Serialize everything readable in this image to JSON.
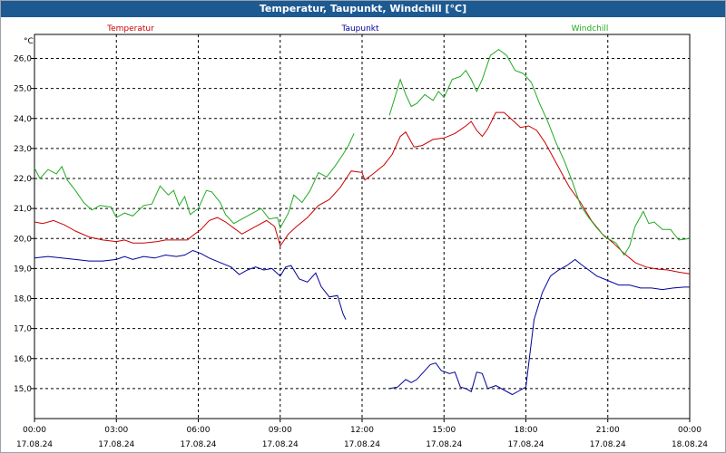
{
  "window": {
    "title": "Temperatur, Taupunkt, Windchill [°C]"
  },
  "chart_data": {
    "type": "line",
    "title": "Temperatur, Taupunkt, Windchill [°C]",
    "ylabel": "°C",
    "xlabel": "",
    "ylim": [
      14.0,
      26.8
    ],
    "xlim": [
      0,
      24
    ],
    "grid": true,
    "legend_placement": "top",
    "yticks": [
      {
        "v": 15.0,
        "label": "15,0"
      },
      {
        "v": 16.0,
        "label": "16,0"
      },
      {
        "v": 17.0,
        "label": "17,0"
      },
      {
        "v": 18.0,
        "label": "18,0"
      },
      {
        "v": 19.0,
        "label": "19,0"
      },
      {
        "v": 20.0,
        "label": "20,0"
      },
      {
        "v": 21.0,
        "label": "21,0"
      },
      {
        "v": 22.0,
        "label": "22,0"
      },
      {
        "v": 23.0,
        "label": "23,0"
      },
      {
        "v": 24.0,
        "label": "24,0"
      },
      {
        "v": 25.0,
        "label": "25,0"
      },
      {
        "v": 26.0,
        "label": "26,0"
      }
    ],
    "xticks": [
      {
        "h": 0,
        "time": "00:00",
        "date": "17.08.24"
      },
      {
        "h": 3,
        "time": "03:00",
        "date": "17.08.24"
      },
      {
        "h": 6,
        "time": "06:00",
        "date": "17.08.24"
      },
      {
        "h": 9,
        "time": "09:00",
        "date": "17.08.24"
      },
      {
        "h": 12,
        "time": "12:00",
        "date": "17.08.24"
      },
      {
        "h": 15,
        "time": "15:00",
        "date": "17.08.24"
      },
      {
        "h": 18,
        "time": "18:00",
        "date": "17.08.24"
      },
      {
        "h": 21,
        "time": "21:00",
        "date": "17.08.24"
      },
      {
        "h": 24,
        "time": "00:00",
        "date": "18.08.24"
      }
    ],
    "series": [
      {
        "name": "Temperatur",
        "color": "#cc0000",
        "segments": [
          [
            [
              0,
              20.55
            ],
            [
              0.3,
              20.5
            ],
            [
              0.7,
              20.6
            ],
            [
              1.1,
              20.45
            ],
            [
              1.5,
              20.25
            ],
            [
              2.0,
              20.05
            ],
            [
              2.5,
              19.95
            ],
            [
              3.0,
              19.9
            ],
            [
              3.3,
              19.95
            ],
            [
              3.6,
              19.85
            ],
            [
              4.0,
              19.85
            ],
            [
              4.5,
              19.9
            ],
            [
              4.8,
              19.95
            ],
            [
              5.2,
              19.95
            ],
            [
              5.6,
              19.95
            ],
            [
              5.8,
              20.1
            ],
            [
              6.1,
              20.3
            ],
            [
              6.4,
              20.6
            ],
            [
              6.7,
              20.7
            ],
            [
              7.0,
              20.55
            ],
            [
              7.3,
              20.35
            ],
            [
              7.6,
              20.15
            ],
            [
              7.9,
              20.3
            ],
            [
              8.2,
              20.45
            ],
            [
              8.5,
              20.6
            ],
            [
              8.8,
              20.4
            ],
            [
              9.0,
              19.75
            ],
            [
              9.3,
              20.15
            ],
            [
              9.6,
              20.4
            ],
            [
              10.0,
              20.7
            ],
            [
              10.4,
              21.1
            ],
            [
              10.8,
              21.3
            ],
            [
              11.2,
              21.7
            ],
            [
              11.6,
              22.25
            ],
            [
              12.0,
              22.2
            ],
            [
              12.1,
              21.95
            ],
            [
              12.4,
              22.15
            ],
            [
              12.8,
              22.45
            ],
            [
              13.1,
              22.8
            ],
            [
              13.4,
              23.4
            ],
            [
              13.6,
              23.55
            ],
            [
              13.9,
              23.05
            ],
            [
              14.2,
              23.1
            ],
            [
              14.6,
              23.3
            ],
            [
              15.0,
              23.35
            ],
            [
              15.4,
              23.5
            ],
            [
              15.8,
              23.75
            ],
            [
              16.0,
              23.9
            ],
            [
              16.2,
              23.6
            ],
            [
              16.4,
              23.4
            ],
            [
              16.6,
              23.65
            ],
            [
              16.9,
              24.2
            ],
            [
              17.2,
              24.2
            ],
            [
              17.5,
              23.95
            ],
            [
              17.8,
              23.7
            ],
            [
              18.1,
              23.75
            ],
            [
              18.4,
              23.6
            ],
            [
              18.7,
              23.2
            ],
            [
              19.0,
              22.7
            ],
            [
              19.3,
              22.2
            ],
            [
              19.6,
              21.7
            ],
            [
              20.0,
              21.2
            ],
            [
              20.4,
              20.6
            ],
            [
              20.8,
              20.15
            ],
            [
              21.2,
              19.85
            ],
            [
              21.6,
              19.5
            ],
            [
              22.0,
              19.2
            ],
            [
              22.4,
              19.05
            ],
            [
              22.8,
              18.98
            ],
            [
              23.2,
              18.95
            ],
            [
              23.6,
              18.88
            ],
            [
              24.0,
              18.82
            ]
          ]
        ]
      },
      {
        "name": "Taupunkt",
        "color": "#000099",
        "segments": [
          [
            [
              0,
              19.35
            ],
            [
              0.5,
              19.4
            ],
            [
              1.0,
              19.35
            ],
            [
              1.5,
              19.3
            ],
            [
              2.0,
              19.25
            ],
            [
              2.5,
              19.25
            ],
            [
              3.0,
              19.3
            ],
            [
              3.3,
              19.4
            ],
            [
              3.6,
              19.3
            ],
            [
              4.0,
              19.4
            ],
            [
              4.4,
              19.35
            ],
            [
              4.8,
              19.45
            ],
            [
              5.2,
              19.4
            ],
            [
              5.5,
              19.45
            ],
            [
              5.8,
              19.6
            ],
            [
              6.1,
              19.5
            ],
            [
              6.4,
              19.35
            ],
            [
              6.8,
              19.2
            ],
            [
              7.2,
              19.05
            ],
            [
              7.5,
              18.8
            ],
            [
              7.8,
              18.95
            ],
            [
              8.1,
              19.05
            ],
            [
              8.4,
              18.95
            ],
            [
              8.7,
              19.0
            ],
            [
              9.0,
              18.75
            ],
            [
              9.2,
              19.05
            ],
            [
              9.4,
              19.1
            ],
            [
              9.7,
              18.65
            ],
            [
              10.0,
              18.55
            ],
            [
              10.3,
              18.85
            ],
            [
              10.5,
              18.4
            ],
            [
              10.8,
              18.05
            ],
            [
              11.1,
              18.1
            ],
            [
              11.3,
              17.5
            ],
            [
              11.4,
              17.3
            ]
          ],
          [
            [
              13.0,
              15.0
            ],
            [
              13.3,
              15.05
            ],
            [
              13.6,
              15.3
            ],
            [
              13.8,
              15.2
            ],
            [
              14.0,
              15.3
            ],
            [
              14.2,
              15.5
            ],
            [
              14.5,
              15.8
            ],
            [
              14.7,
              15.85
            ],
            [
              14.9,
              15.6
            ],
            [
              15.2,
              15.5
            ],
            [
              15.4,
              15.55
            ],
            [
              15.6,
              15.05
            ],
            [
              15.8,
              15.0
            ],
            [
              16.0,
              14.9
            ],
            [
              16.2,
              15.55
            ],
            [
              16.4,
              15.5
            ],
            [
              16.6,
              15.0
            ],
            [
              16.9,
              15.1
            ],
            [
              17.2,
              14.95
            ],
            [
              17.5,
              14.8
            ],
            [
              17.8,
              14.95
            ],
            [
              18.0,
              15.05
            ],
            [
              18.3,
              17.3
            ],
            [
              18.6,
              18.2
            ],
            [
              18.9,
              18.75
            ],
            [
              19.2,
              18.95
            ],
            [
              19.5,
              19.1
            ],
            [
              19.8,
              19.3
            ],
            [
              20.0,
              19.15
            ],
            [
              20.3,
              18.95
            ],
            [
              20.6,
              18.75
            ],
            [
              21.0,
              18.6
            ],
            [
              21.4,
              18.45
            ],
            [
              21.8,
              18.45
            ],
            [
              22.2,
              18.35
            ],
            [
              22.6,
              18.35
            ],
            [
              23.0,
              18.3
            ],
            [
              23.4,
              18.35
            ],
            [
              23.8,
              18.38
            ],
            [
              24.0,
              18.38
            ]
          ]
        ]
      },
      {
        "name": "Windchill",
        "color": "#22aa22",
        "segments": [
          [
            [
              0,
              22.35
            ],
            [
              0.2,
              22.0
            ],
            [
              0.5,
              22.3
            ],
            [
              0.8,
              22.15
            ],
            [
              1.0,
              22.4
            ],
            [
              1.2,
              21.95
            ],
            [
              1.5,
              21.6
            ],
            [
              1.8,
              21.2
            ],
            [
              2.1,
              20.95
            ],
            [
              2.4,
              21.1
            ],
            [
              2.8,
              21.05
            ],
            [
              3.0,
              20.7
            ],
            [
              3.3,
              20.85
            ],
            [
              3.6,
              20.75
            ],
            [
              4.0,
              21.1
            ],
            [
              4.3,
              21.15
            ],
            [
              4.6,
              21.75
            ],
            [
              4.9,
              21.45
            ],
            [
              5.1,
              21.6
            ],
            [
              5.3,
              21.1
            ],
            [
              5.5,
              21.4
            ],
            [
              5.7,
              20.8
            ],
            [
              6.0,
              21.0
            ],
            [
              6.3,
              21.6
            ],
            [
              6.5,
              21.55
            ],
            [
              6.8,
              21.2
            ],
            [
              7.0,
              20.8
            ],
            [
              7.3,
              20.5
            ],
            [
              7.6,
              20.65
            ],
            [
              8.0,
              20.85
            ],
            [
              8.3,
              21.0
            ],
            [
              8.6,
              20.65
            ],
            [
              8.9,
              20.7
            ],
            [
              9.0,
              20.35
            ],
            [
              9.3,
              20.85
            ],
            [
              9.5,
              21.45
            ],
            [
              9.8,
              21.2
            ],
            [
              10.1,
              21.6
            ],
            [
              10.4,
              22.2
            ],
            [
              10.7,
              22.05
            ],
            [
              11.0,
              22.4
            ],
            [
              11.3,
              22.8
            ],
            [
              11.5,
              23.1
            ],
            [
              11.7,
              23.5
            ]
          ],
          [
            [
              13.0,
              24.1
            ],
            [
              13.2,
              24.7
            ],
            [
              13.4,
              25.3
            ],
            [
              13.6,
              24.8
            ],
            [
              13.8,
              24.4
            ],
            [
              14.0,
              24.5
            ],
            [
              14.3,
              24.8
            ],
            [
              14.6,
              24.6
            ],
            [
              14.8,
              24.9
            ],
            [
              15.0,
              24.7
            ],
            [
              15.3,
              25.3
            ],
            [
              15.6,
              25.4
            ],
            [
              15.8,
              25.6
            ],
            [
              16.0,
              25.3
            ],
            [
              16.2,
              24.9
            ],
            [
              16.4,
              25.3
            ],
            [
              16.7,
              26.1
            ],
            [
              17.0,
              26.3
            ],
            [
              17.3,
              26.1
            ],
            [
              17.6,
              25.6
            ],
            [
              17.9,
              25.5
            ],
            [
              18.2,
              25.2
            ],
            [
              18.5,
              24.5
            ],
            [
              18.8,
              23.9
            ],
            [
              19.1,
              23.2
            ],
            [
              19.4,
              22.6
            ],
            [
              19.7,
              21.9
            ],
            [
              20.0,
              21.1
            ],
            [
              20.3,
              20.7
            ],
            [
              20.6,
              20.35
            ],
            [
              20.9,
              20.05
            ],
            [
              21.3,
              19.85
            ],
            [
              21.6,
              19.45
            ],
            [
              21.8,
              19.75
            ],
            [
              22.0,
              20.4
            ],
            [
              22.3,
              20.9
            ],
            [
              22.5,
              20.5
            ],
            [
              22.7,
              20.55
            ],
            [
              23.0,
              20.3
            ],
            [
              23.3,
              20.3
            ],
            [
              23.6,
              19.95
            ],
            [
              24.0,
              20.0
            ]
          ]
        ]
      }
    ]
  }
}
